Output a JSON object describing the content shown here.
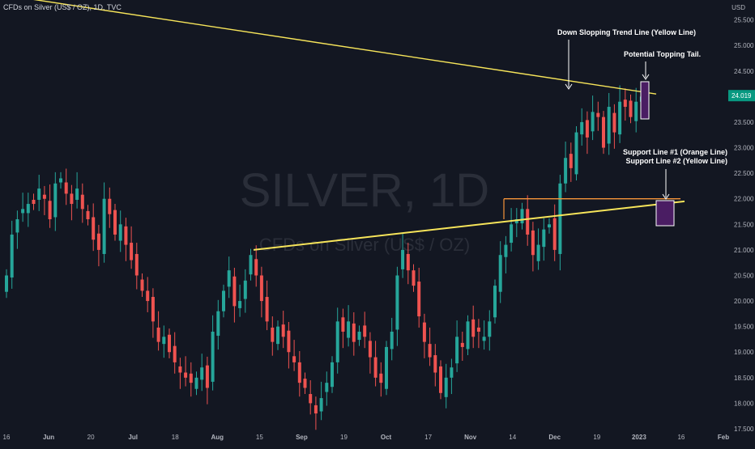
{
  "header": {
    "symbol_line": "CFDs on Silver (US$ / OZ), 1D, TVC",
    "currency": "USD"
  },
  "watermark": {
    "line1": "SILVER, 1D",
    "line2": "CFDs on Silver (US$ / OZ)"
  },
  "price_badge": {
    "value": "24.019",
    "color": "#089981"
  },
  "colors": {
    "background": "#131722",
    "up_candle": "#26a69a",
    "down_candle": "#ef5350",
    "trend_line": "#f7e55a",
    "support_orange": "#f7953a",
    "annotation_box": "#4a1d63"
  },
  "chart_data": {
    "type": "candlestick",
    "x_labels": [
      "16",
      "Jun",
      "20",
      "Jul",
      "18",
      "Aug",
      "15",
      "Sep",
      "19",
      "Oct",
      "17",
      "Nov",
      "14",
      "Dec",
      "19",
      "2023",
      "16",
      "Feb"
    ],
    "y_ticks": [
      "17.500",
      "18.000",
      "18.500",
      "19.000",
      "19.500",
      "20.000",
      "20.500",
      "21.000",
      "21.500",
      "22.000",
      "22.500",
      "23.000",
      "23.500",
      "24.500",
      "25.000",
      "25.500"
    ],
    "ylim": [
      17.5,
      25.7
    ],
    "grid": false,
    "close_prices": [
      20.5,
      21.3,
      21.6,
      21.8,
      21.9,
      21.9,
      22.2,
      22.0,
      21.6,
      22.3,
      22.4,
      22.1,
      21.9,
      22.2,
      21.8,
      21.6,
      21.2,
      21.0,
      22.0,
      21.7,
      21.3,
      21.5,
      21.1,
      20.8,
      20.5,
      20.2,
      20.0,
      19.6,
      19.2,
      19.3,
      19.0,
      18.8,
      18.6,
      18.5,
      18.4,
      18.5,
      18.7,
      18.3,
      19.4,
      19.8,
      20.2,
      20.6,
      19.9,
      20.0,
      20.4,
      20.9,
      20.5,
      20.0,
      19.6,
      19.2,
      19.5,
      19.3,
      19.0,
      18.8,
      18.4,
      18.3,
      18.0,
      17.8,
      18.1,
      18.4,
      18.8,
      19.6,
      19.4,
      19.6,
      19.2,
      19.4,
      19.3,
      18.9,
      18.5,
      18.4,
      19.1,
      19.4,
      20.5,
      21.0,
      20.6,
      20.3,
      19.7,
      19.2,
      18.9,
      18.6,
      18.2,
      18.5,
      18.7,
      19.3,
      19.1,
      19.6,
      19.3,
      19.4,
      19.3,
      19.6,
      20.3,
      20.9,
      21.1,
      21.5,
      21.6,
      21.8,
      21.3,
      20.9,
      21.1,
      21.4,
      21.5,
      21.0,
      22.3,
      22.8,
      22.6,
      23.3,
      23.5,
      23.2,
      23.7,
      23.6,
      23.0,
      23.8,
      23.3,
      23.9,
      23.8,
      23.6,
      23.9,
      24.0
    ],
    "annotations": [
      "Down Slopping Trend Line (Yellow Line)",
      "Potential Topping Tail.",
      "Support Line #1 (Orange Line)",
      "Support Line #2 (Yellow Line)"
    ],
    "lines": [
      {
        "name": "Down Slopping Trend Line",
        "from": 26.0,
        "to": 24.05
      },
      {
        "name": "Support Line #1",
        "value": 22.0
      },
      {
        "name": "Support Line #2",
        "from": 21.0,
        "to": 21.95
      }
    ]
  }
}
